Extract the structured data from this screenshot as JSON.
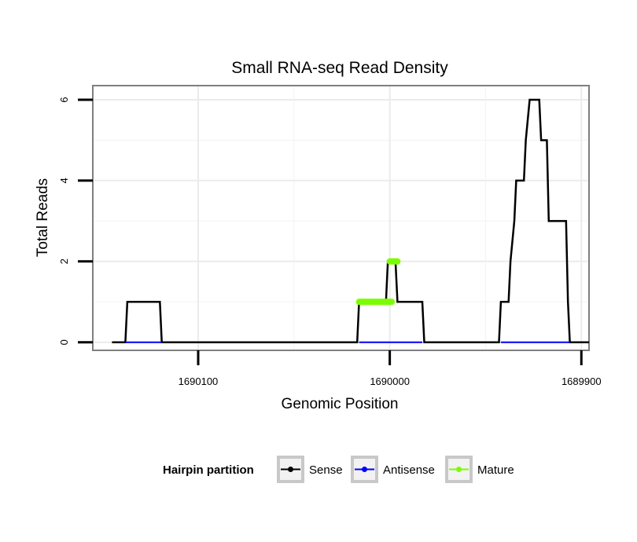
{
  "chart_data": {
    "type": "line",
    "title": "Small RNA-seq Read Density",
    "xlabel": "Genomic Position",
    "ylabel": "Total Reads",
    "x_reversed": true,
    "xlim": [
      1690155,
      1689896
    ],
    "ylim": [
      -0.2,
      6.35
    ],
    "x_ticks": [
      1690100,
      1690000,
      1689900
    ],
    "x_tick_labels": [
      "1690100",
      "1690000",
      "1689900"
    ],
    "y_ticks": [
      0,
      2,
      4,
      6
    ],
    "y_tick_labels": [
      "0",
      "2",
      "4",
      "6"
    ],
    "grid": true,
    "legend": {
      "title": "Hairpin partition",
      "position": "bottom",
      "entries": [
        {
          "name": "Sense",
          "color": "#000000"
        },
        {
          "name": "Antisense",
          "color": "#0000ff"
        },
        {
          "name": "Mature",
          "color": "#7cfc00"
        }
      ]
    },
    "series": [
      {
        "name": "Sense",
        "color": "#000000",
        "points": [
          [
            1690145,
            0
          ],
          [
            1690138,
            0
          ],
          [
            1690137,
            1
          ],
          [
            1690131,
            1
          ],
          [
            1690120,
            1
          ],
          [
            1690119,
            0
          ],
          [
            1690090,
            0
          ],
          [
            1690050,
            0
          ],
          [
            1690017,
            0
          ],
          [
            1690016,
            1
          ],
          [
            1690006,
            1
          ],
          [
            1690002,
            1
          ],
          [
            1690001,
            2
          ],
          [
            1689997,
            2
          ],
          [
            1689996,
            1
          ],
          [
            1689983,
            1
          ],
          [
            1689982,
            0
          ],
          [
            1689960,
            0
          ],
          [
            1689943,
            0
          ],
          [
            1689942,
            1
          ],
          [
            1689938,
            1
          ],
          [
            1689937,
            2
          ],
          [
            1689935,
            3
          ],
          [
            1689934,
            4
          ],
          [
            1689930,
            4
          ],
          [
            1689929,
            5
          ],
          [
            1689927,
            6
          ],
          [
            1689922,
            6
          ],
          [
            1689921,
            5
          ],
          [
            1689918,
            5
          ],
          [
            1689917,
            3
          ],
          [
            1689908,
            3
          ],
          [
            1689907,
            1
          ],
          [
            1689906,
            0
          ],
          [
            1689896,
            0
          ]
        ]
      },
      {
        "name": "Antisense",
        "color": "#0000ff",
        "points": [
          [
            1690138,
            0
          ],
          [
            1690119,
            0
          ],
          [
            1690016,
            0
          ],
          [
            1689983,
            0
          ],
          [
            1689942,
            0
          ],
          [
            1689906,
            0
          ]
        ]
      },
      {
        "name": "Mature",
        "color": "#7cfc00",
        "segments": [
          {
            "x_start": 1690016,
            "x_end": 1689999,
            "y": 1
          },
          {
            "x_start": 1690000,
            "x_end": 1689996,
            "y": 2
          }
        ]
      }
    ]
  }
}
